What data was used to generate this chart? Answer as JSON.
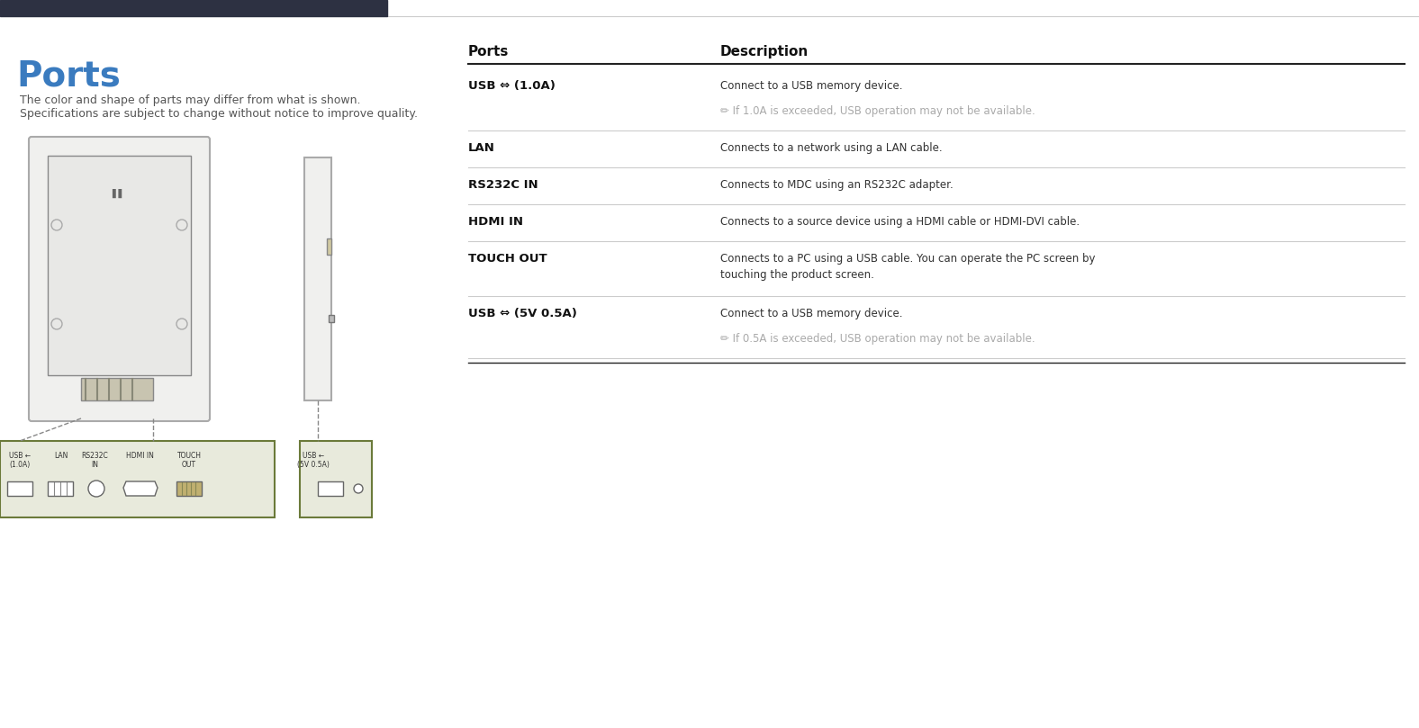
{
  "title": "Ports",
  "subtitle_line1": "The color and shape of parts may differ from what is shown.",
  "subtitle_line2": "Specifications are subject to change without notice to improve quality.",
  "title_color": "#3a7bbf",
  "header_bar_color": "#2d3142",
  "bg_color": "#ffffff",
  "table_header_ports": "Ports",
  "table_header_desc": "Description",
  "rows": [
    {
      "port": "USB ⇔ (1.0A)",
      "port_bold": true,
      "descriptions": [
        {
          "text": "Connect to a USB memory device.",
          "note": false
        },
        {
          "text": "✏ If 1.0A is exceeded, USB operation may not be available.",
          "note": true
        }
      ]
    },
    {
      "port": "LAN",
      "port_bold": true,
      "descriptions": [
        {
          "text": "Connects to a network using a LAN cable.",
          "note": false
        }
      ]
    },
    {
      "port": "RS232C IN",
      "port_bold": true,
      "descriptions": [
        {
          "text": "Connects to MDC using an RS232C adapter.",
          "note": false
        }
      ]
    },
    {
      "port": "HDMI IN",
      "port_bold": true,
      "descriptions": [
        {
          "text": "Connects to a source device using a HDMI cable or HDMI-DVI cable.",
          "note": false
        }
      ]
    },
    {
      "port": "TOUCH OUT",
      "port_bold": true,
      "descriptions": [
        {
          "text": "Connects to a PC using a USB cable. You can operate the PC screen by\ntouching the product screen.",
          "note": false
        }
      ]
    },
    {
      "port": "USB ⇔ (5V 0.5A)",
      "port_bold": true,
      "descriptions": [
        {
          "text": "Connect to a USB memory device.",
          "note": false
        },
        {
          "text": "✏ If 0.5A is exceeded, USB operation may not be available.",
          "note": true
        }
      ]
    }
  ],
  "diagram_bg": "#f5f5f0",
  "diagram_border": "#999999",
  "diagram_frame_color": "#cccccc",
  "port_label_color": "#333333",
  "note_color": "#aaaaaa",
  "text_color": "#333333"
}
